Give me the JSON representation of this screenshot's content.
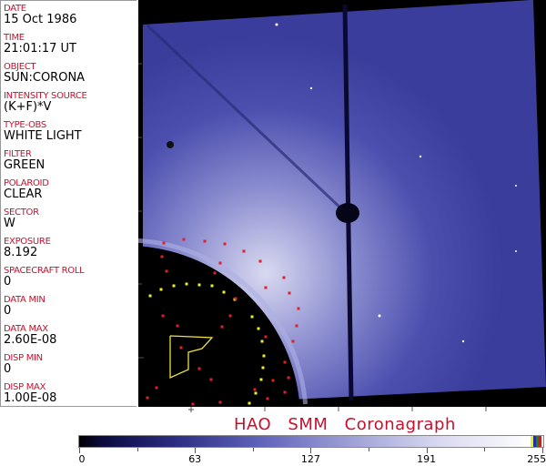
{
  "header_fields": [
    {
      "label": "DATE",
      "value": "15 Oct 1986"
    },
    {
      "label": "TIME",
      "value": "21:01:17 UT"
    },
    {
      "label": "OBJECT",
      "value": "SUN:CORONA"
    },
    {
      "label": "INTENSITY SOURCE",
      "value": "(K+F)*V"
    },
    {
      "label": "TYPE-OBS",
      "value": "WHITE LIGHT"
    },
    {
      "label": "FILTER",
      "value": "GREEN"
    },
    {
      "label": "POLAROID",
      "value": "CLEAR"
    },
    {
      "label": "SECTOR",
      "value": "W"
    },
    {
      "label": "EXPOSURE",
      "value": "8.192"
    },
    {
      "label": "SPACECRAFT ROLL",
      "value": "0"
    },
    {
      "label": "DATA MIN",
      "value": "0"
    },
    {
      "label": "DATA MAX",
      "value": "2.60E-08"
    },
    {
      "label": "DISP MIN",
      "value": "0"
    },
    {
      "label": "DISP MAX",
      "value": "1.00E-08"
    }
  ],
  "title": "HAO   SMM  Coronagraph",
  "colorbar": {
    "ticks": [
      "0",
      "63",
      "127",
      "191",
      "255"
    ],
    "colors": {
      "low": "#000000",
      "mid": "#5d60b8",
      "high": "#ffffff"
    }
  },
  "colors": {
    "label": "#c8102e",
    "image_blue": "#3a3d9c",
    "overlay_red": "#e0202a",
    "overlay_yellow": "#f0f020"
  }
}
